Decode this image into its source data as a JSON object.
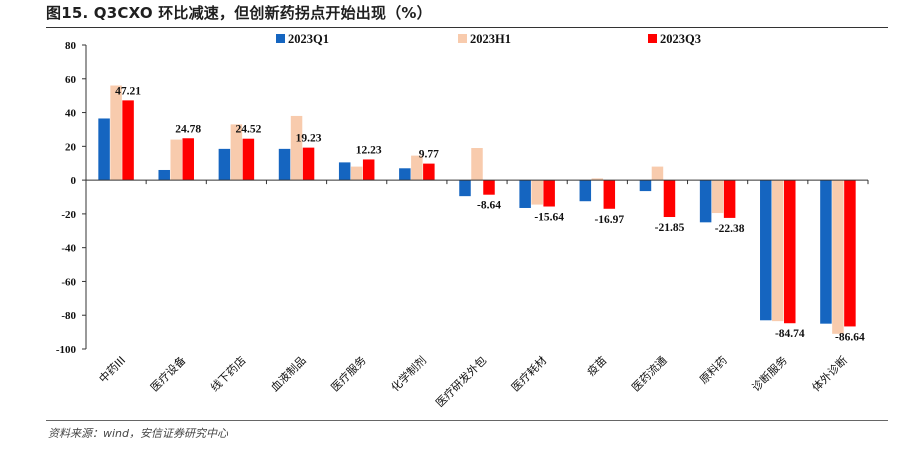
{
  "figure": {
    "title": "图15. Q3CXO 环比减速，但创新药拐点开始出现（%）",
    "source": "资料来源：wind，安信证券研究中心"
  },
  "colors": {
    "2023Q1": "#1565c0",
    "2023H1": "#f8cbad",
    "2023Q3": "#ff0000",
    "axis": "#333333"
  },
  "chart_data": {
    "type": "bar",
    "title": "Q3CXO 环比减速，但创新药拐点开始出现（%）",
    "xlabel": "",
    "ylabel": "",
    "ylim": [
      -100,
      80
    ],
    "yticks": [
      80,
      60,
      40,
      20,
      0,
      -20,
      -40,
      -60,
      -80,
      -100
    ],
    "legend_position": "top",
    "grid": false,
    "categories": [
      "中药III",
      "医疗设备",
      "线下药店",
      "血液制品",
      "医疗服务",
      "化学制剂",
      "医疗研发外包",
      "医疗耗材",
      "疫苗",
      "医药流通",
      "原料药",
      "诊断服务",
      "体外诊断"
    ],
    "series": [
      {
        "name": "2023Q1",
        "values": [
          36.5,
          6.0,
          18.5,
          18.5,
          10.5,
          7.0,
          -9.5,
          -16.5,
          -12.5,
          -6.5,
          -25.0,
          -83.0,
          -85.0
        ]
      },
      {
        "name": "2023H1",
        "values": [
          56.0,
          24.0,
          33.0,
          38.0,
          8.0,
          14.5,
          19.0,
          -14.5,
          1.0,
          8.0,
          -19.5,
          -83.5,
          -91.0
        ]
      },
      {
        "name": "2023Q3",
        "values": [
          47.21,
          24.78,
          24.52,
          19.23,
          12.23,
          9.77,
          -8.64,
          -15.64,
          -16.97,
          -21.85,
          -22.38,
          -84.74,
          -86.64
        ]
      }
    ],
    "data_labels": [
      "47.21",
      "24.78",
      "24.52",
      "19.23",
      "12.23",
      "9.77",
      "-8.64",
      "-15.64",
      "-16.97",
      "-21.85",
      "-22.38",
      "-84.74",
      "-86.64"
    ]
  }
}
